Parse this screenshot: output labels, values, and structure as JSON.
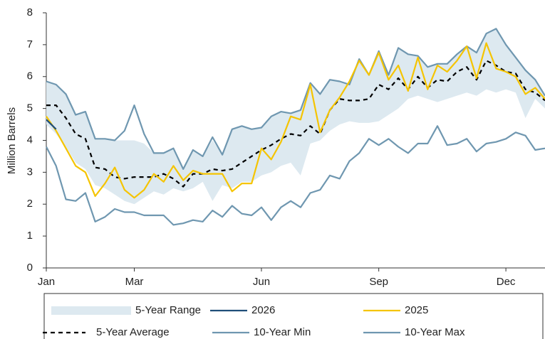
{
  "chart_data": {
    "type": "line",
    "y_label": "Million Barrels",
    "categories": [
      "Jan",
      null,
      null,
      null,
      null,
      null,
      null,
      null,
      null,
      "Mar",
      null,
      null,
      null,
      null,
      null,
      null,
      null,
      null,
      null,
      null,
      null,
      null,
      "Jun",
      null,
      null,
      null,
      null,
      null,
      null,
      null,
      null,
      null,
      null,
      null,
      "Sep",
      null,
      null,
      null,
      null,
      null,
      null,
      null,
      null,
      null,
      null,
      null,
      null,
      "Dec",
      null,
      null,
      null,
      null
    ],
    "ylim": [
      0,
      8
    ],
    "yticks": [
      0,
      1,
      2,
      3,
      4,
      5,
      6,
      7,
      8
    ],
    "series": [
      {
        "name": "5-Year Range",
        "style": "band",
        "color": "#dde9f0",
        "low": [
          4.5,
          4.2,
          3.8,
          3.3,
          3.1,
          2.6,
          2.5,
          2.3,
          2.1,
          2.0,
          2.2,
          2.4,
          2.3,
          2.5,
          2.4,
          2.5,
          2.7,
          2.1,
          2.6,
          2.5,
          2.7,
          2.7,
          2.9,
          3.0,
          3.2,
          3.3,
          2.9,
          3.9,
          4.0,
          4.3,
          4.5,
          4.6,
          4.55,
          4.55,
          4.6,
          4.8,
          5.0,
          5.3,
          5.4,
          5.3,
          5.2,
          5.3,
          5.4,
          5.5,
          5.4,
          5.6,
          5.5,
          5.6,
          5.5,
          4.7,
          5.3,
          5.0
        ],
        "high": [
          5.85,
          5.75,
          5.45,
          4.8,
          4.9,
          4.05,
          4.05,
          4.0,
          4.0,
          4.0,
          3.9,
          3.6,
          3.6,
          3.75,
          3.1,
          3.7,
          3.5,
          4.0,
          3.55,
          4.35,
          4.45,
          4.35,
          4.4,
          4.75,
          4.9,
          4.85,
          4.95,
          5.8,
          5.45,
          5.9,
          5.85,
          5.75,
          6.55,
          6.05,
          6.8,
          6.05,
          6.9,
          6.7,
          6.65,
          6.3,
          6.4,
          6.4,
          6.7,
          6.95,
          6.75,
          7.35,
          7.5,
          7.0,
          6.6,
          6.2,
          5.9,
          5.4
        ]
      },
      {
        "name": "2026",
        "style": "line",
        "color": "#1f4e79",
        "values": [
          4.65,
          4.35,
          null,
          null,
          null,
          null,
          null,
          null,
          null,
          null,
          null,
          null,
          null,
          null,
          null,
          null,
          null,
          null,
          null,
          null,
          null,
          null,
          null,
          null,
          null,
          null,
          null,
          null,
          null,
          null,
          null,
          null,
          null,
          null,
          null,
          null,
          null,
          null,
          null,
          null,
          null,
          null,
          null,
          null,
          null,
          null,
          null,
          null,
          null,
          null,
          null,
          null
        ]
      },
      {
        "name": "2025",
        "style": "line",
        "color": "#f5c400",
        "values": [
          4.75,
          4.3,
          3.75,
          3.2,
          3.0,
          2.25,
          2.65,
          3.15,
          2.45,
          2.2,
          2.45,
          2.95,
          2.7,
          3.2,
          2.75,
          3.05,
          2.95,
          2.95,
          2.95,
          2.4,
          2.65,
          2.65,
          3.75,
          3.4,
          3.95,
          4.75,
          4.65,
          5.75,
          4.25,
          4.95,
          5.35,
          5.85,
          6.5,
          6.05,
          6.75,
          5.9,
          6.35,
          5.55,
          6.6,
          5.6,
          6.35,
          6.15,
          6.5,
          6.95,
          5.95,
          7.05,
          6.25,
          6.15,
          6.0,
          5.45,
          5.65,
          5.3
        ]
      },
      {
        "name": "5-Year Average",
        "style": "dashed",
        "color": "#000000",
        "values": [
          5.1,
          5.1,
          4.7,
          4.2,
          4.05,
          3.15,
          3.1,
          2.85,
          2.8,
          2.85,
          2.85,
          2.85,
          2.95,
          2.8,
          2.55,
          2.95,
          2.95,
          3.1,
          3.05,
          3.1,
          3.3,
          3.5,
          3.7,
          3.85,
          4.05,
          4.2,
          4.15,
          4.45,
          4.2,
          4.95,
          5.3,
          5.25,
          5.25,
          5.3,
          5.75,
          5.6,
          5.95,
          5.6,
          6.0,
          5.65,
          5.9,
          5.85,
          6.15,
          6.3,
          5.9,
          6.5,
          6.35,
          6.15,
          6.1,
          5.6,
          5.5,
          5.25
        ]
      },
      {
        "name": "10-Year Min",
        "style": "line",
        "color": "#6f97b0",
        "values": [
          3.8,
          3.2,
          2.15,
          2.1,
          2.35,
          1.45,
          1.6,
          1.85,
          1.75,
          1.75,
          1.65,
          1.65,
          1.65,
          1.35,
          1.4,
          1.5,
          1.45,
          1.8,
          1.6,
          1.95,
          1.7,
          1.65,
          1.9,
          1.5,
          1.9,
          2.1,
          1.9,
          2.35,
          2.45,
          2.9,
          2.8,
          3.35,
          3.6,
          4.05,
          3.85,
          4.05,
          3.8,
          3.6,
          3.9,
          3.9,
          4.45,
          3.85,
          3.9,
          4.05,
          3.65,
          3.9,
          3.95,
          4.05,
          4.25,
          4.15,
          3.7,
          3.75
        ]
      },
      {
        "name": "10-Year Max",
        "style": "line",
        "color": "#6f97b0",
        "values": [
          5.85,
          5.75,
          5.45,
          4.8,
          4.9,
          4.05,
          4.05,
          4.0,
          4.3,
          5.1,
          4.2,
          3.6,
          3.6,
          3.75,
          3.1,
          3.7,
          3.5,
          4.1,
          3.55,
          4.35,
          4.45,
          4.35,
          4.4,
          4.75,
          4.9,
          4.85,
          4.95,
          5.8,
          5.45,
          5.9,
          5.85,
          5.75,
          6.55,
          6.05,
          6.8,
          6.05,
          6.9,
          6.7,
          6.65,
          6.3,
          6.4,
          6.4,
          6.7,
          6.95,
          6.75,
          7.35,
          7.5,
          7.0,
          6.6,
          6.2,
          5.9,
          5.4
        ]
      }
    ]
  }
}
